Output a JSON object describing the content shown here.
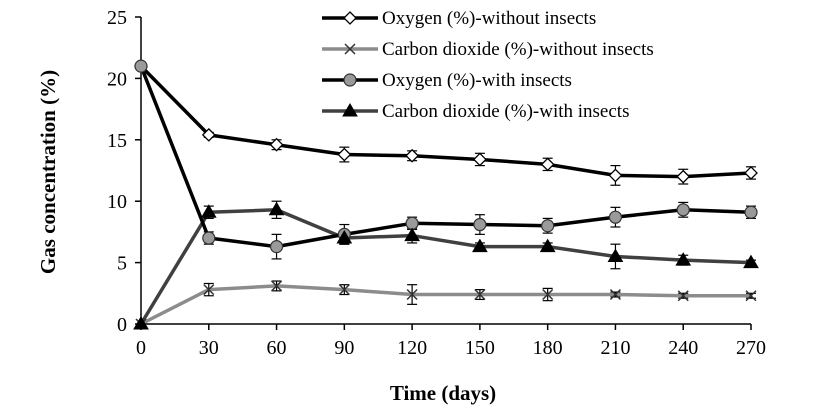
{
  "chart_data": {
    "type": "line",
    "title": "",
    "xlabel": "Time (days)",
    "ylabel": "Gas concentration (%)",
    "x": [
      0,
      30,
      60,
      90,
      120,
      150,
      180,
      210,
      240,
      270
    ],
    "x_ticks": [
      "0",
      "30",
      "60",
      "90",
      "120",
      "150",
      "180",
      "210",
      "240",
      "270"
    ],
    "y_ticks": [
      "0",
      "5",
      "10",
      "15",
      "20",
      "25"
    ],
    "xlim": [
      0,
      270
    ],
    "ylim": [
      0,
      25
    ],
    "grid": false,
    "legend_position": "top-right",
    "series": [
      {
        "name": "Oxygen (%)-without insects",
        "color": "#000000",
        "marker": "diamond-open",
        "values": [
          21.0,
          15.4,
          14.6,
          13.8,
          13.7,
          13.4,
          13.0,
          12.1,
          12.0,
          12.3
        ],
        "errors": [
          0,
          0.2,
          0.4,
          0.6,
          0.4,
          0.5,
          0.5,
          0.8,
          0.6,
          0.5
        ]
      },
      {
        "name": "Carbon dioxide (%)-without insects",
        "color": "#8c8c8c",
        "marker": "x",
        "values": [
          0.0,
          2.8,
          3.1,
          2.8,
          2.4,
          2.4,
          2.4,
          2.4,
          2.3,
          2.3
        ],
        "errors": [
          0,
          0.5,
          0.4,
          0.4,
          0.8,
          0.4,
          0.5,
          0.2,
          0.2,
          0.2
        ]
      },
      {
        "name": "Oxygen (%)-with insects",
        "color": "#000000",
        "marker": "circle-gray",
        "values": [
          21.0,
          7.0,
          6.3,
          7.3,
          8.2,
          8.1,
          8.0,
          8.7,
          9.3,
          9.1
        ],
        "errors": [
          0,
          0.5,
          1.0,
          0.8,
          0.5,
          0.8,
          0.6,
          0.8,
          0.6,
          0.5
        ]
      },
      {
        "name": "Carbon dioxide (%)-with insects",
        "color": "#404040",
        "marker": "triangle",
        "values": [
          0.0,
          9.1,
          9.3,
          7.0,
          7.2,
          6.3,
          6.3,
          5.5,
          5.2,
          5.0
        ],
        "errors": [
          0,
          0.5,
          0.7,
          0.5,
          0.6,
          0.3,
          0.3,
          1.0,
          0.4,
          0.2
        ]
      }
    ]
  }
}
